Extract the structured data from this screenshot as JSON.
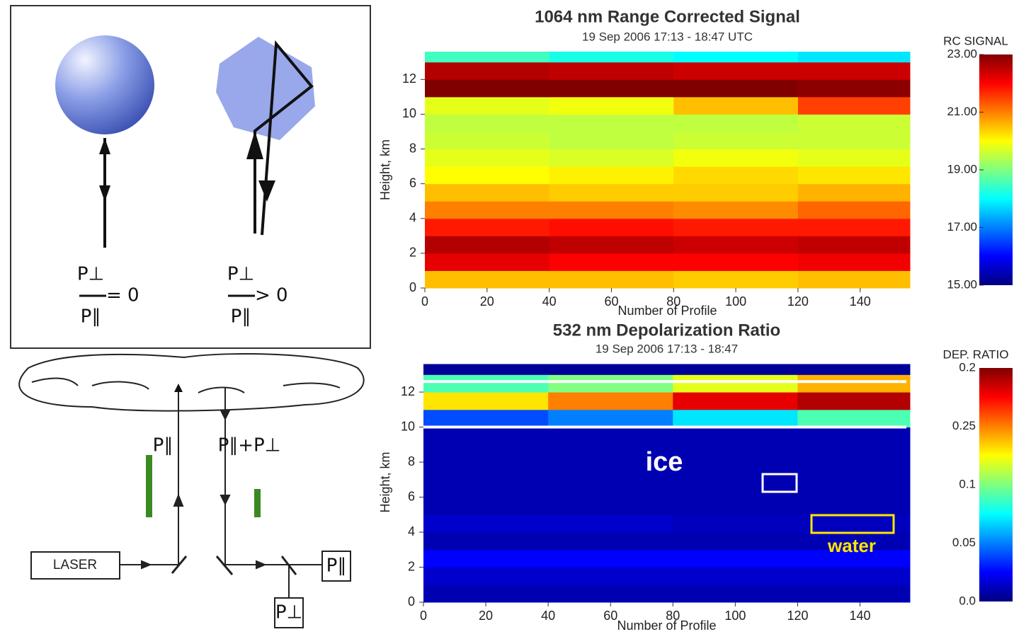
{
  "diagram": {
    "ratio_zero": {
      "numerator": "P⊥",
      "denominator": "P∥",
      "relation": "= 0"
    },
    "ratio_positive": {
      "numerator": "P⊥",
      "denominator": "P∥",
      "relation": "> 0"
    },
    "beam_up_label": "P∥",
    "beam_down_label": "P∥+P⊥",
    "laser_label": "LASER",
    "detector_parallel": "P∥",
    "detector_perpendicular": "P⊥"
  },
  "chart_data": [
    {
      "type": "heatmap",
      "title": "1064 nm Range Corrected Signal",
      "subtitle": "19 Sep 2006 17:13 - 18:47 UTC",
      "x_label": "Number of Profile",
      "y_label": "Height, km",
      "x_bins": [
        0,
        40,
        80,
        120,
        156
      ],
      "y_bins": [
        0,
        1,
        2,
        3,
        4,
        5,
        6,
        7,
        8,
        9,
        10,
        11,
        12,
        13,
        13.6
      ],
      "values": [
        [
          20.5,
          20.5,
          20.4,
          20.5
        ],
        [
          22.2,
          22.0,
          22.0,
          22.1
        ],
        [
          22.6,
          22.5,
          22.4,
          22.5
        ],
        [
          21.8,
          21.9,
          21.8,
          21.8
        ],
        [
          21.0,
          21.0,
          20.9,
          21.2
        ],
        [
          20.5,
          20.4,
          20.4,
          20.6
        ],
        [
          20.0,
          20.1,
          20.3,
          20.2
        ],
        [
          19.8,
          19.7,
          19.9,
          19.8
        ],
        [
          19.6,
          19.5,
          19.6,
          19.6
        ],
        [
          19.5,
          19.5,
          19.5,
          19.6
        ],
        [
          19.8,
          19.9,
          20.5,
          21.5
        ],
        [
          23.0,
          23.0,
          23.0,
          22.9
        ],
        [
          22.6,
          22.5,
          22.4,
          22.4
        ],
        [
          18.5,
          18.2,
          18.0,
          17.8
        ]
      ],
      "xlim": [
        0,
        156
      ],
      "ylim": [
        0,
        13.6
      ],
      "xticks": [
        0,
        20,
        40,
        60,
        80,
        100,
        120,
        140
      ],
      "yticks": [
        0,
        2,
        4,
        6,
        8,
        10,
        12
      ],
      "colorbar_title": "RC SIGNAL",
      "zlim": [
        15,
        23
      ],
      "colorbar_ticks": [
        {
          "value": 23,
          "label": "23.00"
        },
        {
          "value": 21,
          "label": "21.00"
        },
        {
          "value": 19,
          "label": "19.00"
        },
        {
          "value": 17,
          "label": "17.00"
        },
        {
          "value": 15,
          "label": "15.00"
        }
      ]
    },
    {
      "type": "heatmap",
      "title": "532 nm Depolarization Ratio",
      "subtitle": "19 Sep 2006 17:13 - 18:47",
      "x_label": "Number of Profile",
      "y_label": "Height, km",
      "x_bins": [
        0,
        40,
        80,
        120,
        156
      ],
      "y_bins": [
        0,
        1,
        2,
        3,
        4,
        5,
        6,
        7,
        8,
        9,
        10,
        11,
        12,
        13,
        13.6
      ],
      "values": [
        [
          0.01,
          0.01,
          0.01,
          0.01
        ],
        [
          0.015,
          0.015,
          0.015,
          0.015
        ],
        [
          0.025,
          0.025,
          0.025,
          0.025
        ],
        [
          0.01,
          0.01,
          0.01,
          0.01
        ],
        [
          0.015,
          0.015,
          0.012,
          0.012
        ],
        [
          0.01,
          0.01,
          0.01,
          0.01
        ],
        [
          0.01,
          0.01,
          0.01,
          0.01
        ],
        [
          0.01,
          0.01,
          0.01,
          0.01
        ],
        [
          0.01,
          0.01,
          0.01,
          0.01
        ],
        [
          0.01,
          0.01,
          0.01,
          0.01
        ],
        [
          0.04,
          0.05,
          0.07,
          0.09
        ],
        [
          0.13,
          0.15,
          0.18,
          0.19
        ],
        [
          0.09,
          0.1,
          0.12,
          0.14
        ],
        [
          0.005,
          0.005,
          0.005,
          0.005
        ]
      ],
      "xlim": [
        0,
        156
      ],
      "ylim": [
        0,
        13.7
      ],
      "xticks": [
        0,
        20,
        40,
        60,
        80,
        100,
        120,
        140
      ],
      "yticks": [
        0,
        2,
        4,
        6,
        8,
        10,
        12
      ],
      "colorbar_title": "DEP. RATIO",
      "zlim": [
        0,
        0.2
      ],
      "colorbar_labels": [
        "0.2",
        "0.25",
        "0.1",
        "0.05",
        "0.0"
      ],
      "annotations": [
        "ice",
        "water"
      ]
    }
  ]
}
